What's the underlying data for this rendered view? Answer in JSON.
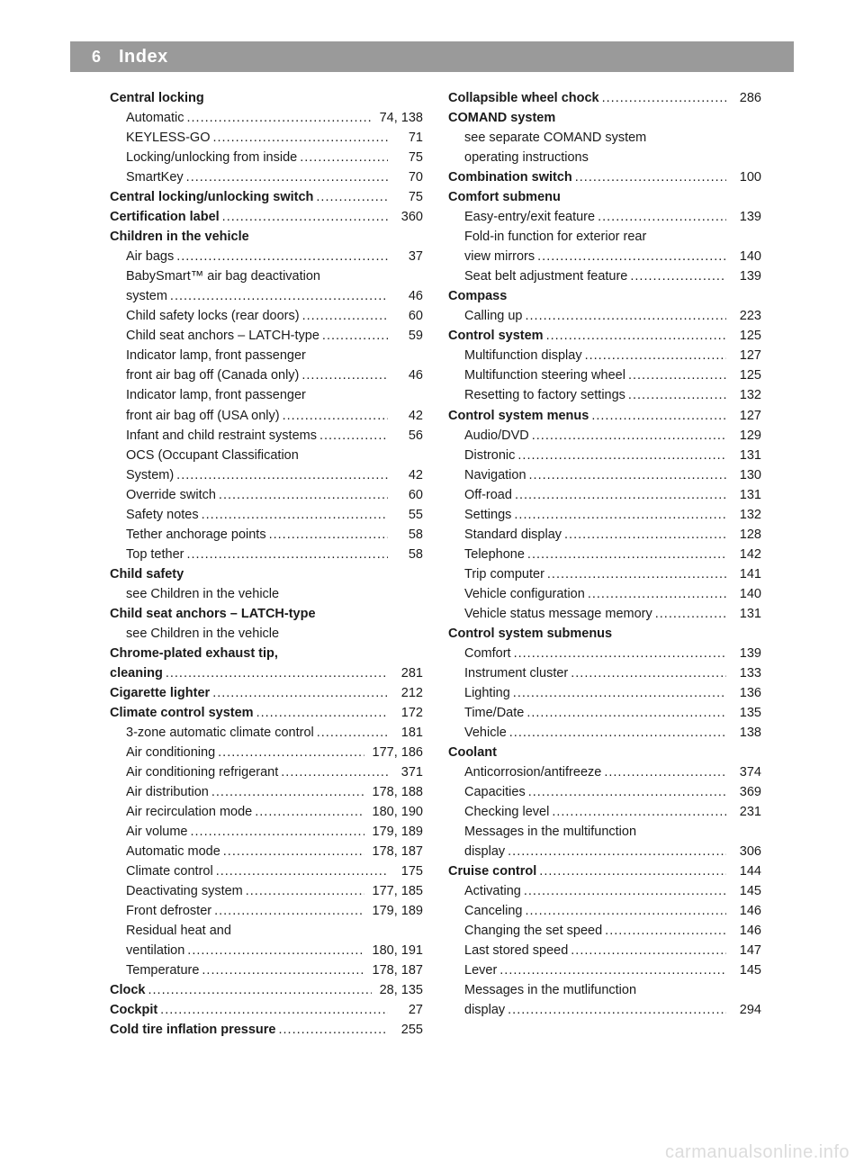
{
  "header": {
    "page_number": "6",
    "title": "Index"
  },
  "watermark": "carmanualsonline.info",
  "left": [
    {
      "type": "heading",
      "label": "Central locking"
    },
    {
      "type": "sub",
      "label": "Automatic",
      "pages": "74, 138"
    },
    {
      "type": "sub",
      "label": "KEYLESS-GO",
      "pages": "71"
    },
    {
      "type": "sub",
      "label": "Locking/unlocking from inside",
      "pages": "75"
    },
    {
      "type": "sub",
      "label": "SmartKey",
      "pages": "70"
    },
    {
      "type": "topbold",
      "label": "Central locking/unlocking switch",
      "pages": "75"
    },
    {
      "type": "topbold",
      "label": "Certification label",
      "pages": "360"
    },
    {
      "type": "heading",
      "label": "Children in the vehicle"
    },
    {
      "type": "sub",
      "label": "Air bags",
      "pages": "37"
    },
    {
      "type": "subtext",
      "label": "BabySmart™ air bag deactivation"
    },
    {
      "type": "sub",
      "label": "system",
      "pages": "46"
    },
    {
      "type": "sub",
      "label": "Child safety locks (rear doors)",
      "pages": "60"
    },
    {
      "type": "sub",
      "label": "Child seat anchors – LATCH-type",
      "pages": "59"
    },
    {
      "type": "subtext",
      "label": "Indicator lamp, front passenger"
    },
    {
      "type": "sub",
      "label": "front air bag off (Canada only)",
      "pages": "46"
    },
    {
      "type": "subtext",
      "label": "Indicator lamp, front passenger"
    },
    {
      "type": "sub",
      "label": "front air bag off (USA only)",
      "pages": "42"
    },
    {
      "type": "sub",
      "label": "Infant and child restraint systems",
      "pages": "56"
    },
    {
      "type": "subtext",
      "label": "OCS (Occupant Classification"
    },
    {
      "type": "sub",
      "label": "System)",
      "pages": "42"
    },
    {
      "type": "sub",
      "label": "Override switch",
      "pages": "60"
    },
    {
      "type": "sub",
      "label": "Safety notes",
      "pages": "55"
    },
    {
      "type": "sub",
      "label": "Tether anchorage points",
      "pages": "58"
    },
    {
      "type": "sub",
      "label": "Top tether",
      "pages": "58"
    },
    {
      "type": "heading",
      "label": "Child safety"
    },
    {
      "type": "see",
      "label": "see Children in the vehicle"
    },
    {
      "type": "heading",
      "label": "Child seat anchors – LATCH-type"
    },
    {
      "type": "see",
      "label": "see Children in the vehicle"
    },
    {
      "type": "heading",
      "label": "Chrome-plated exhaust tip,"
    },
    {
      "type": "topbold",
      "label": "cleaning",
      "pages": "281"
    },
    {
      "type": "topbold",
      "label": "Cigarette lighter",
      "pages": "212"
    },
    {
      "type": "topbold",
      "label": "Climate control system",
      "pages": "172"
    },
    {
      "type": "sub",
      "label": "3-zone automatic climate control",
      "pages": "181"
    },
    {
      "type": "sub",
      "label": "Air conditioning",
      "pages": "177, 186"
    },
    {
      "type": "sub",
      "label": "Air conditioning refrigerant",
      "pages": "371"
    },
    {
      "type": "sub",
      "label": "Air distribution",
      "pages": "178, 188"
    },
    {
      "type": "sub",
      "label": "Air recirculation mode",
      "pages": "180, 190"
    },
    {
      "type": "sub",
      "label": "Air volume",
      "pages": "179, 189"
    },
    {
      "type": "sub",
      "label": "Automatic mode",
      "pages": "178, 187"
    },
    {
      "type": "sub",
      "label": "Climate control",
      "pages": "175"
    },
    {
      "type": "sub",
      "label": "Deactivating system",
      "pages": "177, 185"
    },
    {
      "type": "sub",
      "label": "Front defroster",
      "pages": "179, 189"
    },
    {
      "type": "subtext",
      "label": "Residual heat and"
    },
    {
      "type": "sub",
      "label": "ventilation",
      "pages": "180, 191"
    },
    {
      "type": "sub",
      "label": "Temperature",
      "pages": "178, 187"
    },
    {
      "type": "topbold",
      "label": "Clock",
      "pages": "28, 135"
    },
    {
      "type": "topbold",
      "label": "Cockpit",
      "pages": "27"
    },
    {
      "type": "topbold",
      "label": "Cold tire inflation pressure",
      "pages": "255"
    }
  ],
  "right": [
    {
      "type": "topbold",
      "label": "Collapsible wheel chock",
      "pages": "286"
    },
    {
      "type": "heading",
      "label": "COMAND system"
    },
    {
      "type": "see",
      "label": "see separate COMAND system"
    },
    {
      "type": "see",
      "label": "operating instructions"
    },
    {
      "type": "topbold",
      "label": "Combination switch",
      "pages": "100"
    },
    {
      "type": "heading",
      "label": "Comfort submenu"
    },
    {
      "type": "sub",
      "label": "Easy-entry/exit feature",
      "pages": "139"
    },
    {
      "type": "subtext",
      "label": "Fold-in function for exterior rear"
    },
    {
      "type": "sub",
      "label": "view mirrors",
      "pages": "140"
    },
    {
      "type": "sub",
      "label": "Seat belt adjustment feature",
      "pages": "139"
    },
    {
      "type": "heading",
      "label": "Compass"
    },
    {
      "type": "sub",
      "label": "Calling up",
      "pages": "223"
    },
    {
      "type": "topbold",
      "label": "Control system",
      "pages": "125"
    },
    {
      "type": "sub",
      "label": "Multifunction display",
      "pages": "127"
    },
    {
      "type": "sub",
      "label": "Multifunction steering wheel",
      "pages": "125"
    },
    {
      "type": "sub",
      "label": "Resetting to factory settings",
      "pages": "132"
    },
    {
      "type": "topbold",
      "label": "Control system menus",
      "pages": "127"
    },
    {
      "type": "sub",
      "label": "Audio/DVD",
      "pages": "129"
    },
    {
      "type": "sub",
      "label": "Distronic",
      "pages": "131"
    },
    {
      "type": "sub",
      "label": "Navigation",
      "pages": "130"
    },
    {
      "type": "sub",
      "label": "Off-road",
      "pages": "131"
    },
    {
      "type": "sub",
      "label": "Settings",
      "pages": "132"
    },
    {
      "type": "sub",
      "label": "Standard display",
      "pages": "128"
    },
    {
      "type": "sub",
      "label": "Telephone",
      "pages": "142"
    },
    {
      "type": "sub",
      "label": "Trip computer",
      "pages": "141"
    },
    {
      "type": "sub",
      "label": "Vehicle configuration",
      "pages": "140"
    },
    {
      "type": "sub",
      "label": "Vehicle status message memory",
      "pages": "131"
    },
    {
      "type": "heading",
      "label": "Control system submenus"
    },
    {
      "type": "sub",
      "label": "Comfort",
      "pages": "139"
    },
    {
      "type": "sub",
      "label": "Instrument cluster",
      "pages": "133"
    },
    {
      "type": "sub",
      "label": "Lighting",
      "pages": "136"
    },
    {
      "type": "sub",
      "label": "Time/Date",
      "pages": "135"
    },
    {
      "type": "sub",
      "label": "Vehicle",
      "pages": "138"
    },
    {
      "type": "heading",
      "label": "Coolant"
    },
    {
      "type": "sub",
      "label": "Anticorrosion/antifreeze",
      "pages": "374"
    },
    {
      "type": "sub",
      "label": "Capacities",
      "pages": "369"
    },
    {
      "type": "sub",
      "label": "Checking level",
      "pages": "231"
    },
    {
      "type": "subtext",
      "label": "Messages in the multifunction"
    },
    {
      "type": "sub",
      "label": "display",
      "pages": "306"
    },
    {
      "type": "topbold",
      "label": "Cruise control",
      "pages": "144"
    },
    {
      "type": "sub",
      "label": "Activating",
      "pages": "145"
    },
    {
      "type": "sub",
      "label": "Canceling",
      "pages": "146"
    },
    {
      "type": "sub",
      "label": "Changing the set speed",
      "pages": "146"
    },
    {
      "type": "sub",
      "label": "Last stored speed",
      "pages": "147"
    },
    {
      "type": "sub",
      "label": "Lever",
      "pages": "145"
    },
    {
      "type": "subtext",
      "label": "Messages in the mutlifunction"
    },
    {
      "type": "sub",
      "label": "display",
      "pages": "294"
    }
  ]
}
